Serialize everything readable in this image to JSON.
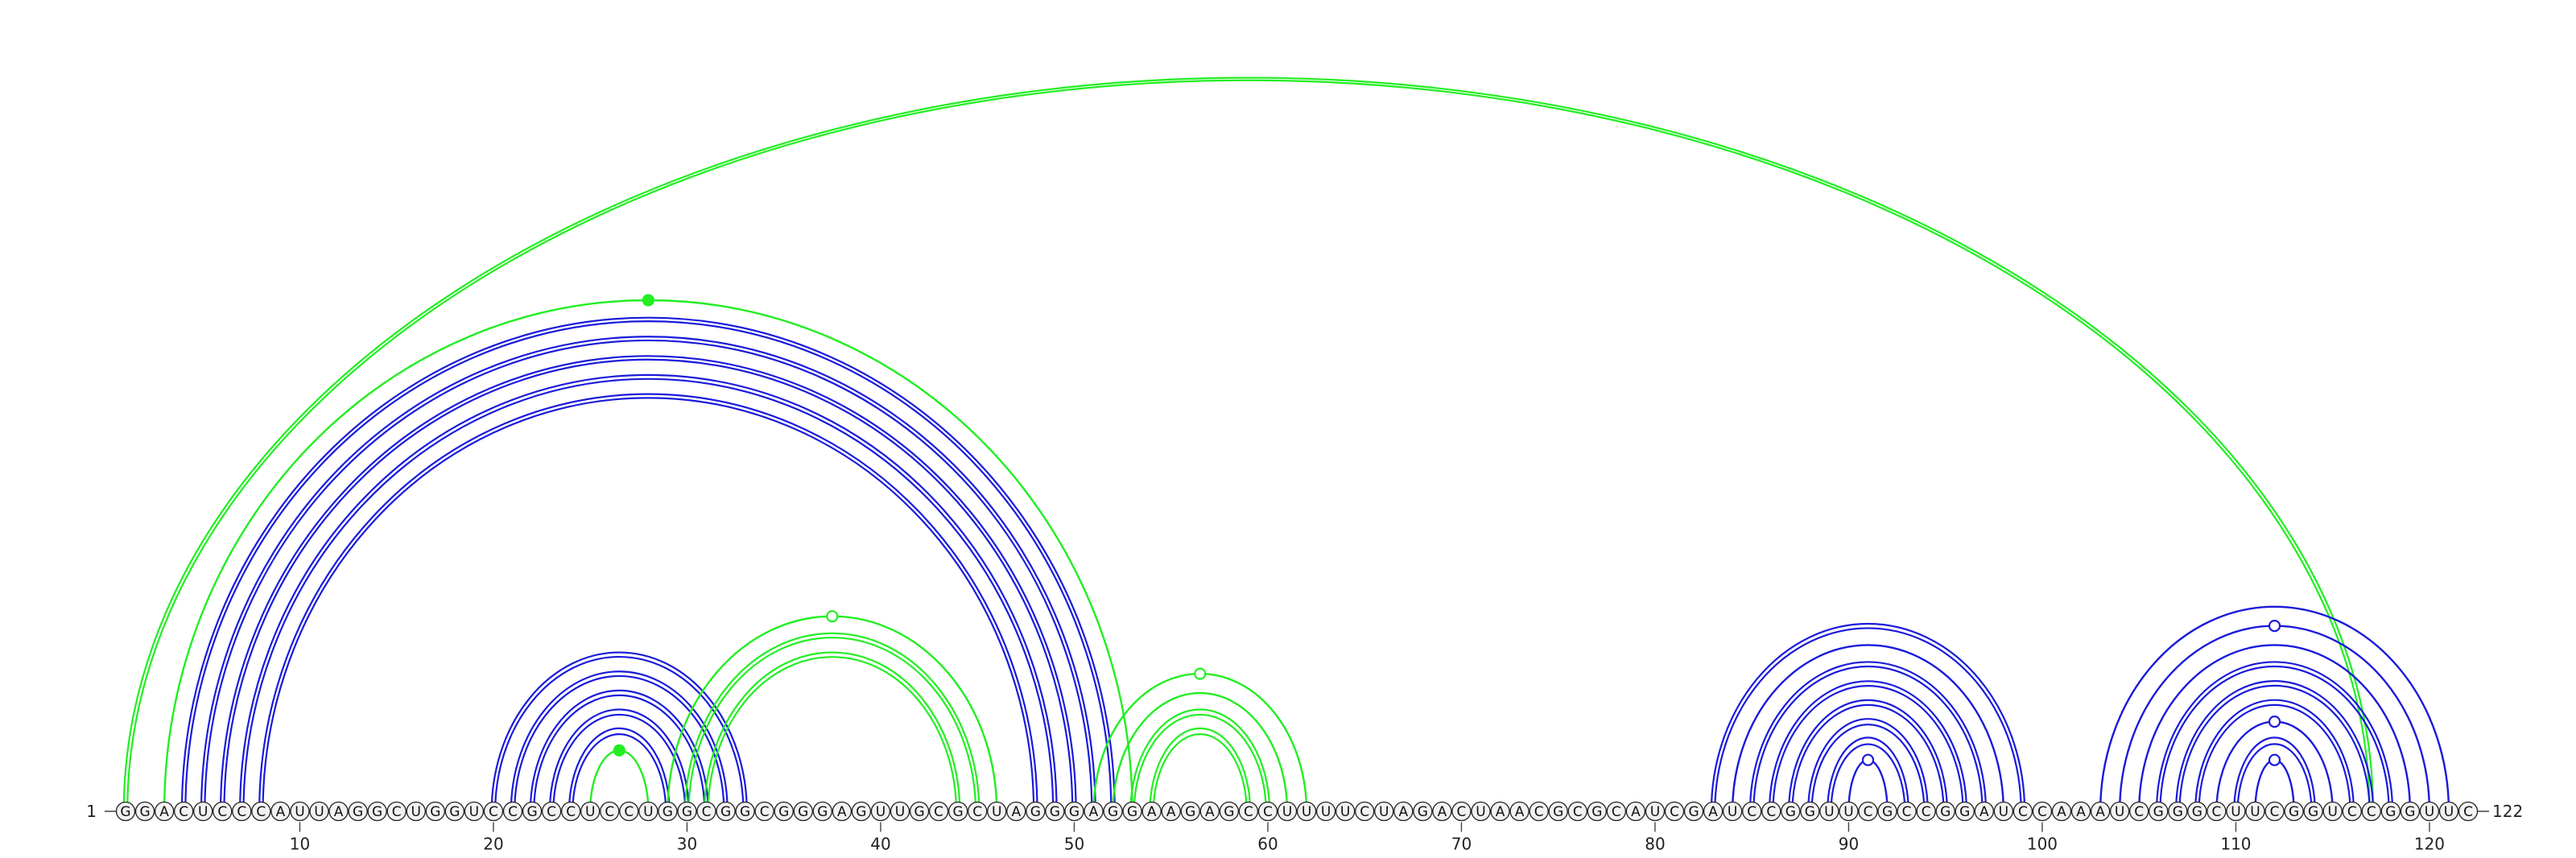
{
  "chart_data": {
    "type": "arc",
    "sequence": "GGACUCCCAUUAGGCUGGUCCGCCUCCUGGCGGCGGGAGUUGCGCUAGGGAGGAAGAGCCUUUUCUAGACUAACGCGCAUCGAUCCGGUUCGCCGGAUCCAAAUCGGGCUUCGGUCCGGUUC",
    "length": 122,
    "start_label": "1",
    "end_label": "122",
    "ticks": [
      10,
      20,
      30,
      40,
      50,
      60,
      70,
      80,
      90,
      100,
      110,
      120
    ],
    "colors": {
      "blue": "#1a1adb",
      "green": "#22ee22",
      "node_fill": "#f2f2f2",
      "axis": "#444444"
    },
    "arcs": [
      {
        "i": 1,
        "j": 117,
        "color": "green",
        "double": true
      },
      {
        "i": 3,
        "j": 53,
        "color": "green",
        "double": false,
        "marker": "filled"
      },
      {
        "i": 4,
        "j": 52,
        "color": "blue",
        "double": true
      },
      {
        "i": 5,
        "j": 51,
        "color": "blue",
        "double": true
      },
      {
        "i": 6,
        "j": 50,
        "color": "blue",
        "double": true
      },
      {
        "i": 7,
        "j": 49,
        "color": "blue",
        "double": true
      },
      {
        "i": 8,
        "j": 48,
        "color": "blue",
        "double": true
      },
      {
        "i": 20,
        "j": 33,
        "color": "blue",
        "double": true
      },
      {
        "i": 21,
        "j": 32,
        "color": "blue",
        "double": true
      },
      {
        "i": 22,
        "j": 31,
        "color": "blue",
        "double": true
      },
      {
        "i": 23,
        "j": 30,
        "color": "blue",
        "double": true
      },
      {
        "i": 24,
        "j": 29,
        "color": "blue",
        "double": true
      },
      {
        "i": 25,
        "j": 28,
        "color": "green",
        "double": false,
        "marker": "filled"
      },
      {
        "i": 29,
        "j": 46,
        "color": "green",
        "double": false,
        "marker": "open"
      },
      {
        "i": 30,
        "j": 45,
        "color": "green",
        "double": true
      },
      {
        "i": 31,
        "j": 44,
        "color": "green",
        "double": true
      },
      {
        "i": 51,
        "j": 62,
        "color": "green",
        "double": false,
        "marker": "open"
      },
      {
        "i": 52,
        "j": 61,
        "color": "green",
        "double": false
      },
      {
        "i": 53,
        "j": 60,
        "color": "green",
        "double": true
      },
      {
        "i": 54,
        "j": 59,
        "color": "green",
        "double": true
      },
      {
        "i": 83,
        "j": 99,
        "color": "blue",
        "double": true
      },
      {
        "i": 84,
        "j": 98,
        "color": "blue",
        "double": false
      },
      {
        "i": 85,
        "j": 97,
        "color": "blue",
        "double": true
      },
      {
        "i": 86,
        "j": 96,
        "color": "blue",
        "double": true
      },
      {
        "i": 87,
        "j": 95,
        "color": "blue",
        "double": true
      },
      {
        "i": 88,
        "j": 94,
        "color": "blue",
        "double": true
      },
      {
        "i": 89,
        "j": 93,
        "color": "blue",
        "double": true
      },
      {
        "i": 90,
        "j": 92,
        "color": "blue",
        "double": false,
        "marker": "open"
      },
      {
        "i": 103,
        "j": 121,
        "color": "blue",
        "double": false
      },
      {
        "i": 104,
        "j": 120,
        "color": "blue",
        "double": false,
        "marker": "open"
      },
      {
        "i": 105,
        "j": 119,
        "color": "blue",
        "double": false
      },
      {
        "i": 106,
        "j": 118,
        "color": "blue",
        "double": true
      },
      {
        "i": 107,
        "j": 117,
        "color": "blue",
        "double": true
      },
      {
        "i": 108,
        "j": 116,
        "color": "blue",
        "double": true
      },
      {
        "i": 109,
        "j": 115,
        "color": "blue",
        "double": false,
        "marker": "open"
      },
      {
        "i": 110,
        "j": 114,
        "color": "blue",
        "double": true
      },
      {
        "i": 111,
        "j": 113,
        "color": "blue",
        "double": false,
        "marker": "open"
      }
    ]
  }
}
